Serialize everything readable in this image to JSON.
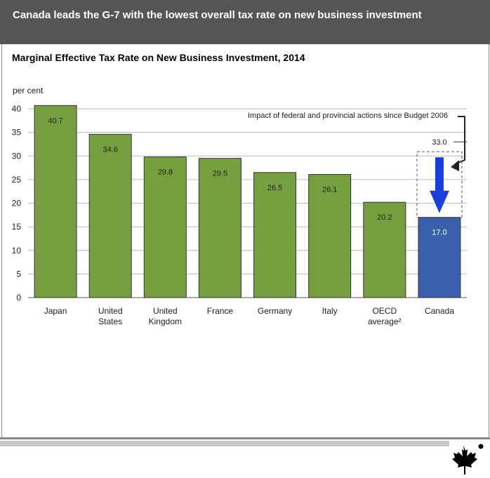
{
  "banner": {
    "title": "Canada leads the G-7 with the lowest overall tax rate on new business investment"
  },
  "chart_data": {
    "type": "bar",
    "title": "Marginal Effective Tax Rate on New Business Investment, 2014",
    "ylabel": "per cent",
    "ylim": [
      0,
      40
    ],
    "yticks": [
      0,
      5,
      10,
      15,
      20,
      25,
      30,
      35,
      40
    ],
    "grid": true,
    "categories": [
      [
        "Japan"
      ],
      [
        "United",
        "States"
      ],
      [
        "United",
        "Kingdom"
      ],
      [
        "France"
      ],
      [
        "Germany"
      ],
      [
        "Italy"
      ],
      [
        "OECD",
        "average²"
      ],
      [
        "Canada"
      ]
    ],
    "values": [
      40.7,
      34.6,
      29.8,
      29.5,
      26.5,
      26.1,
      20.2,
      17.0
    ],
    "value_labels": [
      "40.7",
      "34.6",
      "29.8",
      "29.5",
      "26.5",
      "26.1",
      "20.2",
      "17.0"
    ],
    "bar_colors": [
      "#76a040",
      "#76a040",
      "#76a040",
      "#76a040",
      "#76a040",
      "#76a040",
      "#76a040",
      "#3a60ad"
    ],
    "annotation": {
      "text": "Impact of federal and provincial actions since Budget 2006",
      "previous_value": 33.0,
      "previous_label": "33.0",
      "arrow_color": "#1a3fe0"
    }
  },
  "colors": {
    "banner": "#555555",
    "green_bar": "#76a040",
    "canada_bar": "#3a60ad",
    "arrow": "#1a3fe0"
  },
  "logo": {
    "icon": "maple-leaf-icon"
  }
}
